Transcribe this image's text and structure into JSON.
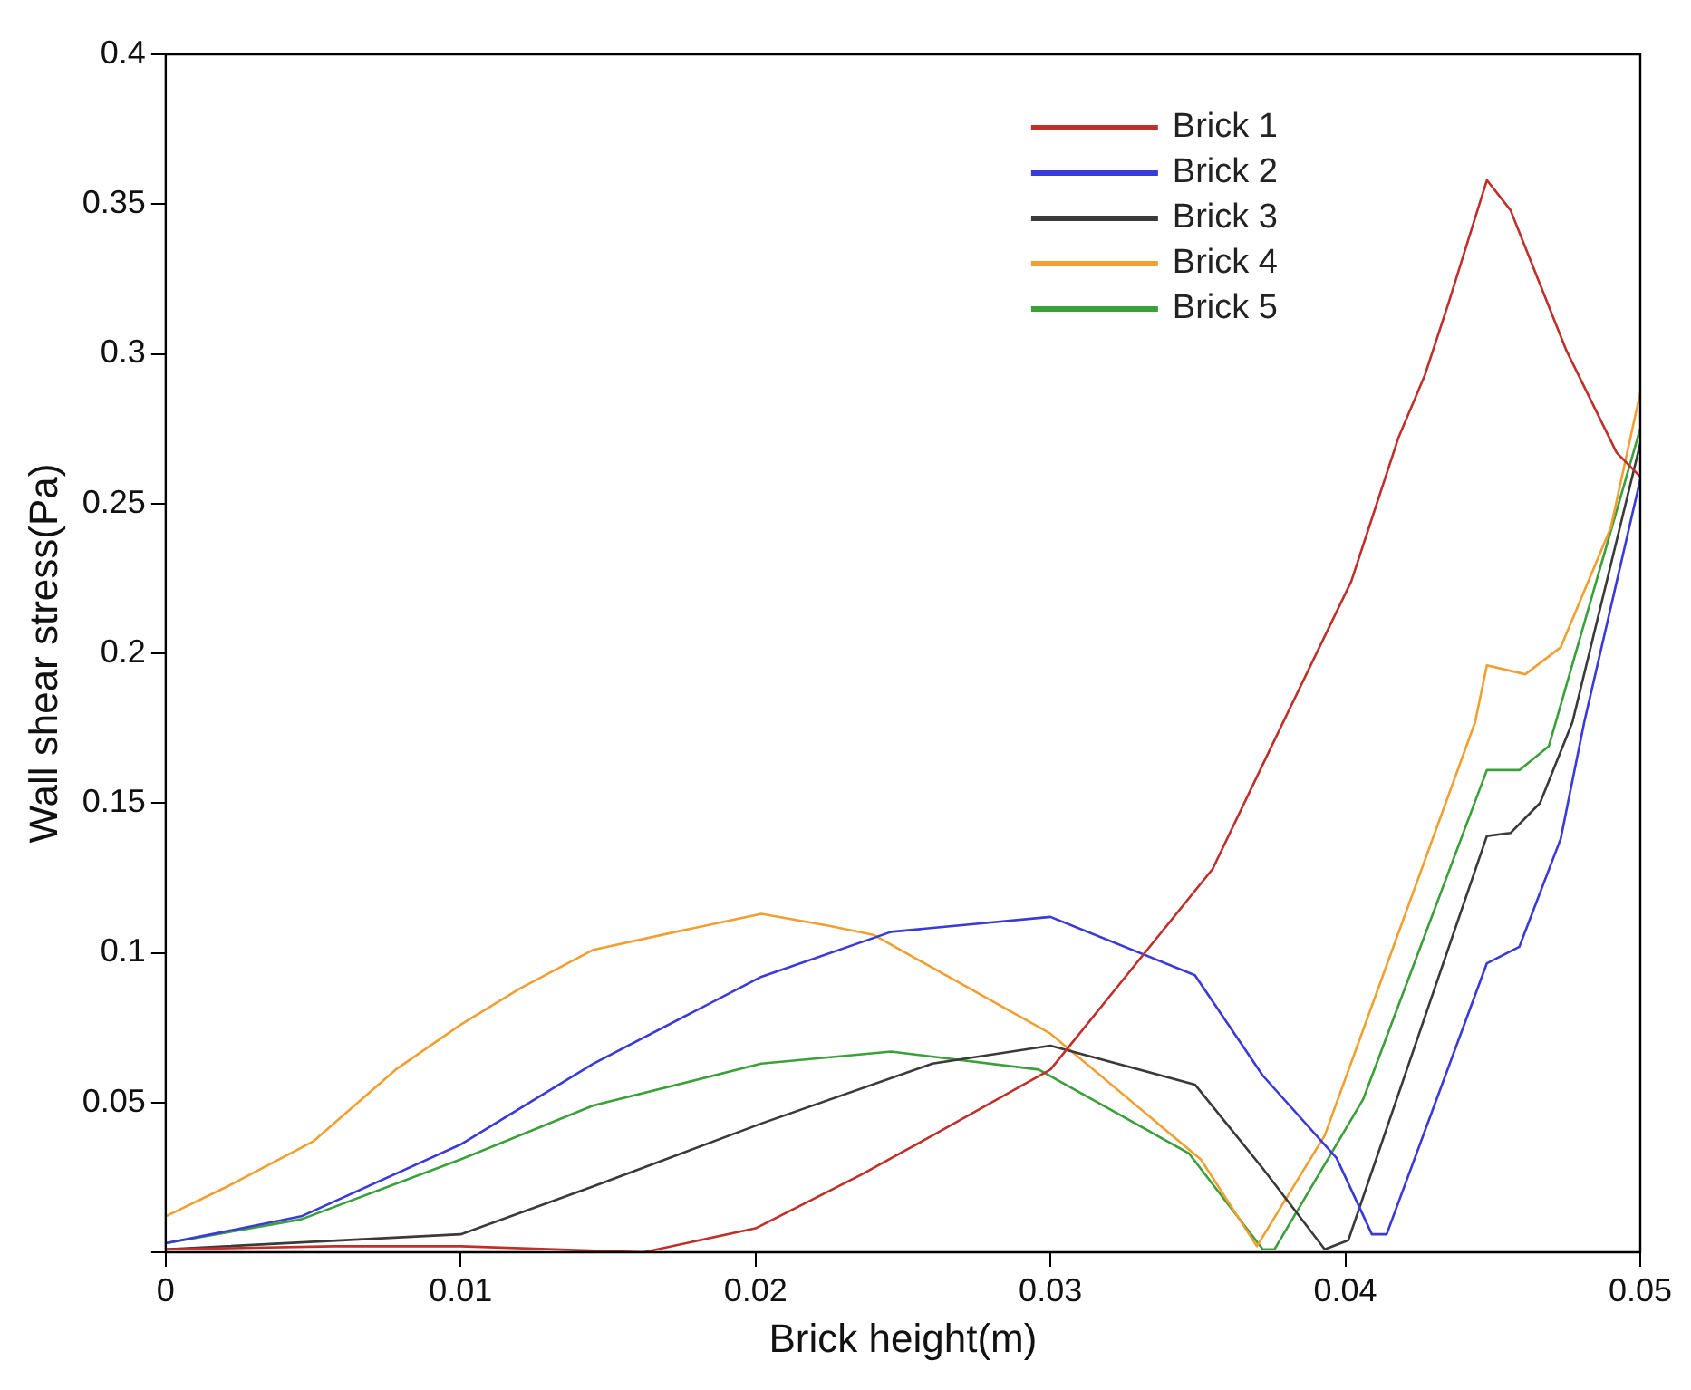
{
  "chart_data": {
    "type": "line",
    "xlabel": "Brick height(m)",
    "ylabel": "Wall shear stress(Pa)",
    "xlim": [
      0,
      0.05
    ],
    "xticks": [
      0,
      0.01,
      0.02,
      0.03,
      0.04,
      0.05
    ],
    "ylim": [
      0,
      0.4
    ],
    "yticks": [
      {
        "value": 0,
        "label": null
      },
      0.05,
      0.1,
      0.15,
      0.2,
      0.25,
      0.3,
      0.35,
      0.4
    ],
    "grid": false,
    "legend": "top right",
    "marker": "none",
    "line_style": "solid",
    "series": [
      {
        "name": "Brick 1",
        "color": "#c0302a",
        "x": [
          0,
          0.0057,
          0.01,
          0.0162,
          0.02,
          0.0236,
          0.026,
          0.03,
          0.0355,
          0.0374,
          0.0402,
          0.0418,
          0.0427,
          0.0435,
          0.0448,
          0.0456,
          0.0475,
          0.0492,
          0.05
        ],
        "values": [
          0.001,
          0.002,
          0.002,
          0,
          0.008,
          0.026,
          0.039,
          0.061,
          0.128,
          0.167,
          0.224,
          0.272,
          0.293,
          0.317,
          0.358,
          0.348,
          0.301,
          0.267,
          0.259
        ]
      },
      {
        "name": "Brick 2",
        "color": "#3a3ad8",
        "x": [
          0,
          0.0046,
          0.01,
          0.0145,
          0.0202,
          0.0246,
          0.03,
          0.0349,
          0.0372,
          0.0397,
          0.0409,
          0.0414,
          0.0448,
          0.0459,
          0.0473,
          0.0481,
          0.05
        ],
        "values": [
          0.003,
          0.012,
          0.036,
          0.063,
          0.092,
          0.107,
          0.112,
          0.0925,
          0.059,
          0.0315,
          0.006,
          0.006,
          0.0965,
          0.102,
          0.138,
          0.177,
          0.258
        ]
      },
      {
        "name": "Brick 3",
        "color": "#3a3a3a",
        "x": [
          0,
          0.01,
          0.0145,
          0.0202,
          0.026,
          0.03,
          0.0349,
          0.0372,
          0.0393,
          0.0401,
          0.0448,
          0.0456,
          0.0466,
          0.0477,
          0.05
        ],
        "values": [
          0.001,
          0.006,
          0.022,
          0.043,
          0.063,
          0.069,
          0.056,
          0.028,
          0.001,
          0.004,
          0.139,
          0.14,
          0.15,
          0.177,
          0.27
        ]
      },
      {
        "name": "Brick 4",
        "color": "#f0a032",
        "x": [
          0,
          0.0021,
          0.005,
          0.0078,
          0.01,
          0.012,
          0.0145,
          0.0173,
          0.0202,
          0.0225,
          0.024,
          0.03,
          0.0351,
          0.037,
          0.0393,
          0.0444,
          0.0448,
          0.0461,
          0.0473,
          0.049,
          0.05
        ],
        "values": [
          0.012,
          0.022,
          0.037,
          0.061,
          0.076,
          0.088,
          0.101,
          0.107,
          0.113,
          0.109,
          0.106,
          0.073,
          0.031,
          0.002,
          0.039,
          0.177,
          0.196,
          0.193,
          0.202,
          0.242,
          0.287
        ]
      },
      {
        "name": "Brick 5",
        "color": "#3aa03a",
        "x": [
          0,
          0.0046,
          0.01,
          0.0145,
          0.0202,
          0.0246,
          0.0296,
          0.0347,
          0.0372,
          0.0376,
          0.0406,
          0.0448,
          0.0459,
          0.0469,
          0.05
        ],
        "values": [
          0.003,
          0.011,
          0.031,
          0.049,
          0.063,
          0.067,
          0.061,
          0.033,
          0.001,
          0.001,
          0.051,
          0.161,
          0.161,
          0.169,
          0.275
        ]
      }
    ]
  }
}
